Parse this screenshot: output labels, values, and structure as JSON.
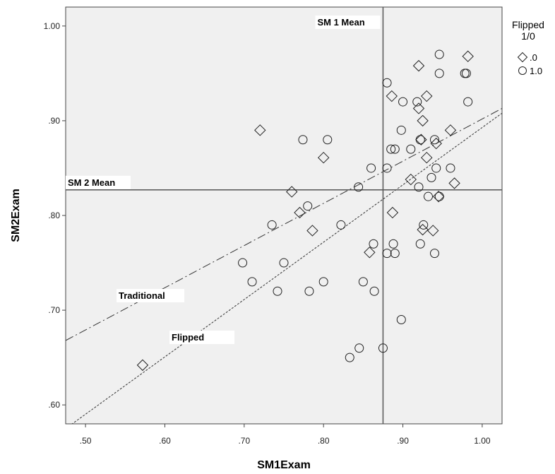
{
  "chart_data": {
    "type": "scatter",
    "xlabel": "SM1Exam",
    "ylabel": "SM2Exam",
    "xlim": [
      0.475,
      1.025
    ],
    "ylim": [
      0.58,
      1.02
    ],
    "x_ticks": [
      ".50",
      ".60",
      ".70",
      ".80",
      ".90",
      "1.00"
    ],
    "x_tick_values": [
      0.5,
      0.6,
      0.7,
      0.8,
      0.9,
      1.0
    ],
    "y_ticks": [
      ".60",
      ".70",
      ".80",
      ".90",
      "1.00"
    ],
    "y_tick_values": [
      0.6,
      0.7,
      0.8,
      0.9,
      1.0
    ],
    "legend": {
      "title": "Flipped\n1/0",
      "position": "right",
      "entries": [
        {
          "label": ".0",
          "marker": "diamond"
        },
        {
          "label": "1.0",
          "marker": "circle"
        }
      ]
    },
    "reference_lines": [
      {
        "label": "SM 1 Mean",
        "axis": "x",
        "value": 0.875
      },
      {
        "label": "SM 2 Mean",
        "axis": "y",
        "value": 0.827
      }
    ],
    "fit_lines": [
      {
        "label": "Traditional",
        "style": "dash-dot",
        "x": [
          0.475,
          1.025
        ],
        "y": [
          0.668,
          0.913
        ]
      },
      {
        "label": "Flipped",
        "style": "dotted",
        "x": [
          0.475,
          1.025
        ],
        "y": [
          0.575,
          0.908
        ]
      }
    ],
    "series": [
      {
        "name": ".0",
        "marker": "diamond",
        "points": [
          [
            0.572,
            0.642
          ],
          [
            0.72,
            0.89
          ],
          [
            0.76,
            0.825
          ],
          [
            0.77,
            0.803
          ],
          [
            0.786,
            0.784
          ],
          [
            0.8,
            0.861
          ],
          [
            0.858,
            0.761
          ],
          [
            0.887,
            0.803
          ],
          [
            0.886,
            0.926
          ],
          [
            0.91,
            0.838
          ],
          [
            0.92,
            0.958
          ],
          [
            0.92,
            0.913
          ],
          [
            0.923,
            0.88
          ],
          [
            0.925,
            0.9
          ],
          [
            0.93,
            0.926
          ],
          [
            0.93,
            0.861
          ],
          [
            0.942,
            0.876
          ],
          [
            0.945,
            0.82
          ],
          [
            0.938,
            0.784
          ],
          [
            0.925,
            0.785
          ],
          [
            0.96,
            0.89
          ],
          [
            0.965,
            0.834
          ],
          [
            0.982,
            0.968
          ]
        ]
      },
      {
        "name": "1.0",
        "marker": "circle",
        "points": [
          [
            0.698,
            0.75
          ],
          [
            0.71,
            0.73
          ],
          [
            0.735,
            0.79
          ],
          [
            0.742,
            0.72
          ],
          [
            0.75,
            0.75
          ],
          [
            0.774,
            0.88
          ],
          [
            0.78,
            0.81
          ],
          [
            0.782,
            0.72
          ],
          [
            0.8,
            0.73
          ],
          [
            0.805,
            0.88
          ],
          [
            0.822,
            0.79
          ],
          [
            0.844,
            0.83
          ],
          [
            0.845,
            0.66
          ],
          [
            0.833,
            0.65
          ],
          [
            0.85,
            0.73
          ],
          [
            0.86,
            0.85
          ],
          [
            0.863,
            0.77
          ],
          [
            0.864,
            0.72
          ],
          [
            0.875,
            0.66
          ],
          [
            0.88,
            0.94
          ],
          [
            0.88,
            0.85
          ],
          [
            0.88,
            0.76
          ],
          [
            0.885,
            0.87
          ],
          [
            0.89,
            0.87
          ],
          [
            0.888,
            0.77
          ],
          [
            0.89,
            0.76
          ],
          [
            0.898,
            0.89
          ],
          [
            0.9,
            0.92
          ],
          [
            0.898,
            0.69
          ],
          [
            0.91,
            0.87
          ],
          [
            0.918,
            0.92
          ],
          [
            0.92,
            0.83
          ],
          [
            0.922,
            0.88
          ],
          [
            0.922,
            0.77
          ],
          [
            0.926,
            0.79
          ],
          [
            0.932,
            0.82
          ],
          [
            0.936,
            0.84
          ],
          [
            0.94,
            0.88
          ],
          [
            0.942,
            0.85
          ],
          [
            0.94,
            0.76
          ],
          [
            0.946,
            0.82
          ],
          [
            0.946,
            0.95
          ],
          [
            0.946,
            0.97
          ],
          [
            0.96,
            0.85
          ],
          [
            0.978,
            0.95
          ],
          [
            0.98,
            0.95
          ],
          [
            0.982,
            0.92
          ]
        ]
      }
    ]
  }
}
